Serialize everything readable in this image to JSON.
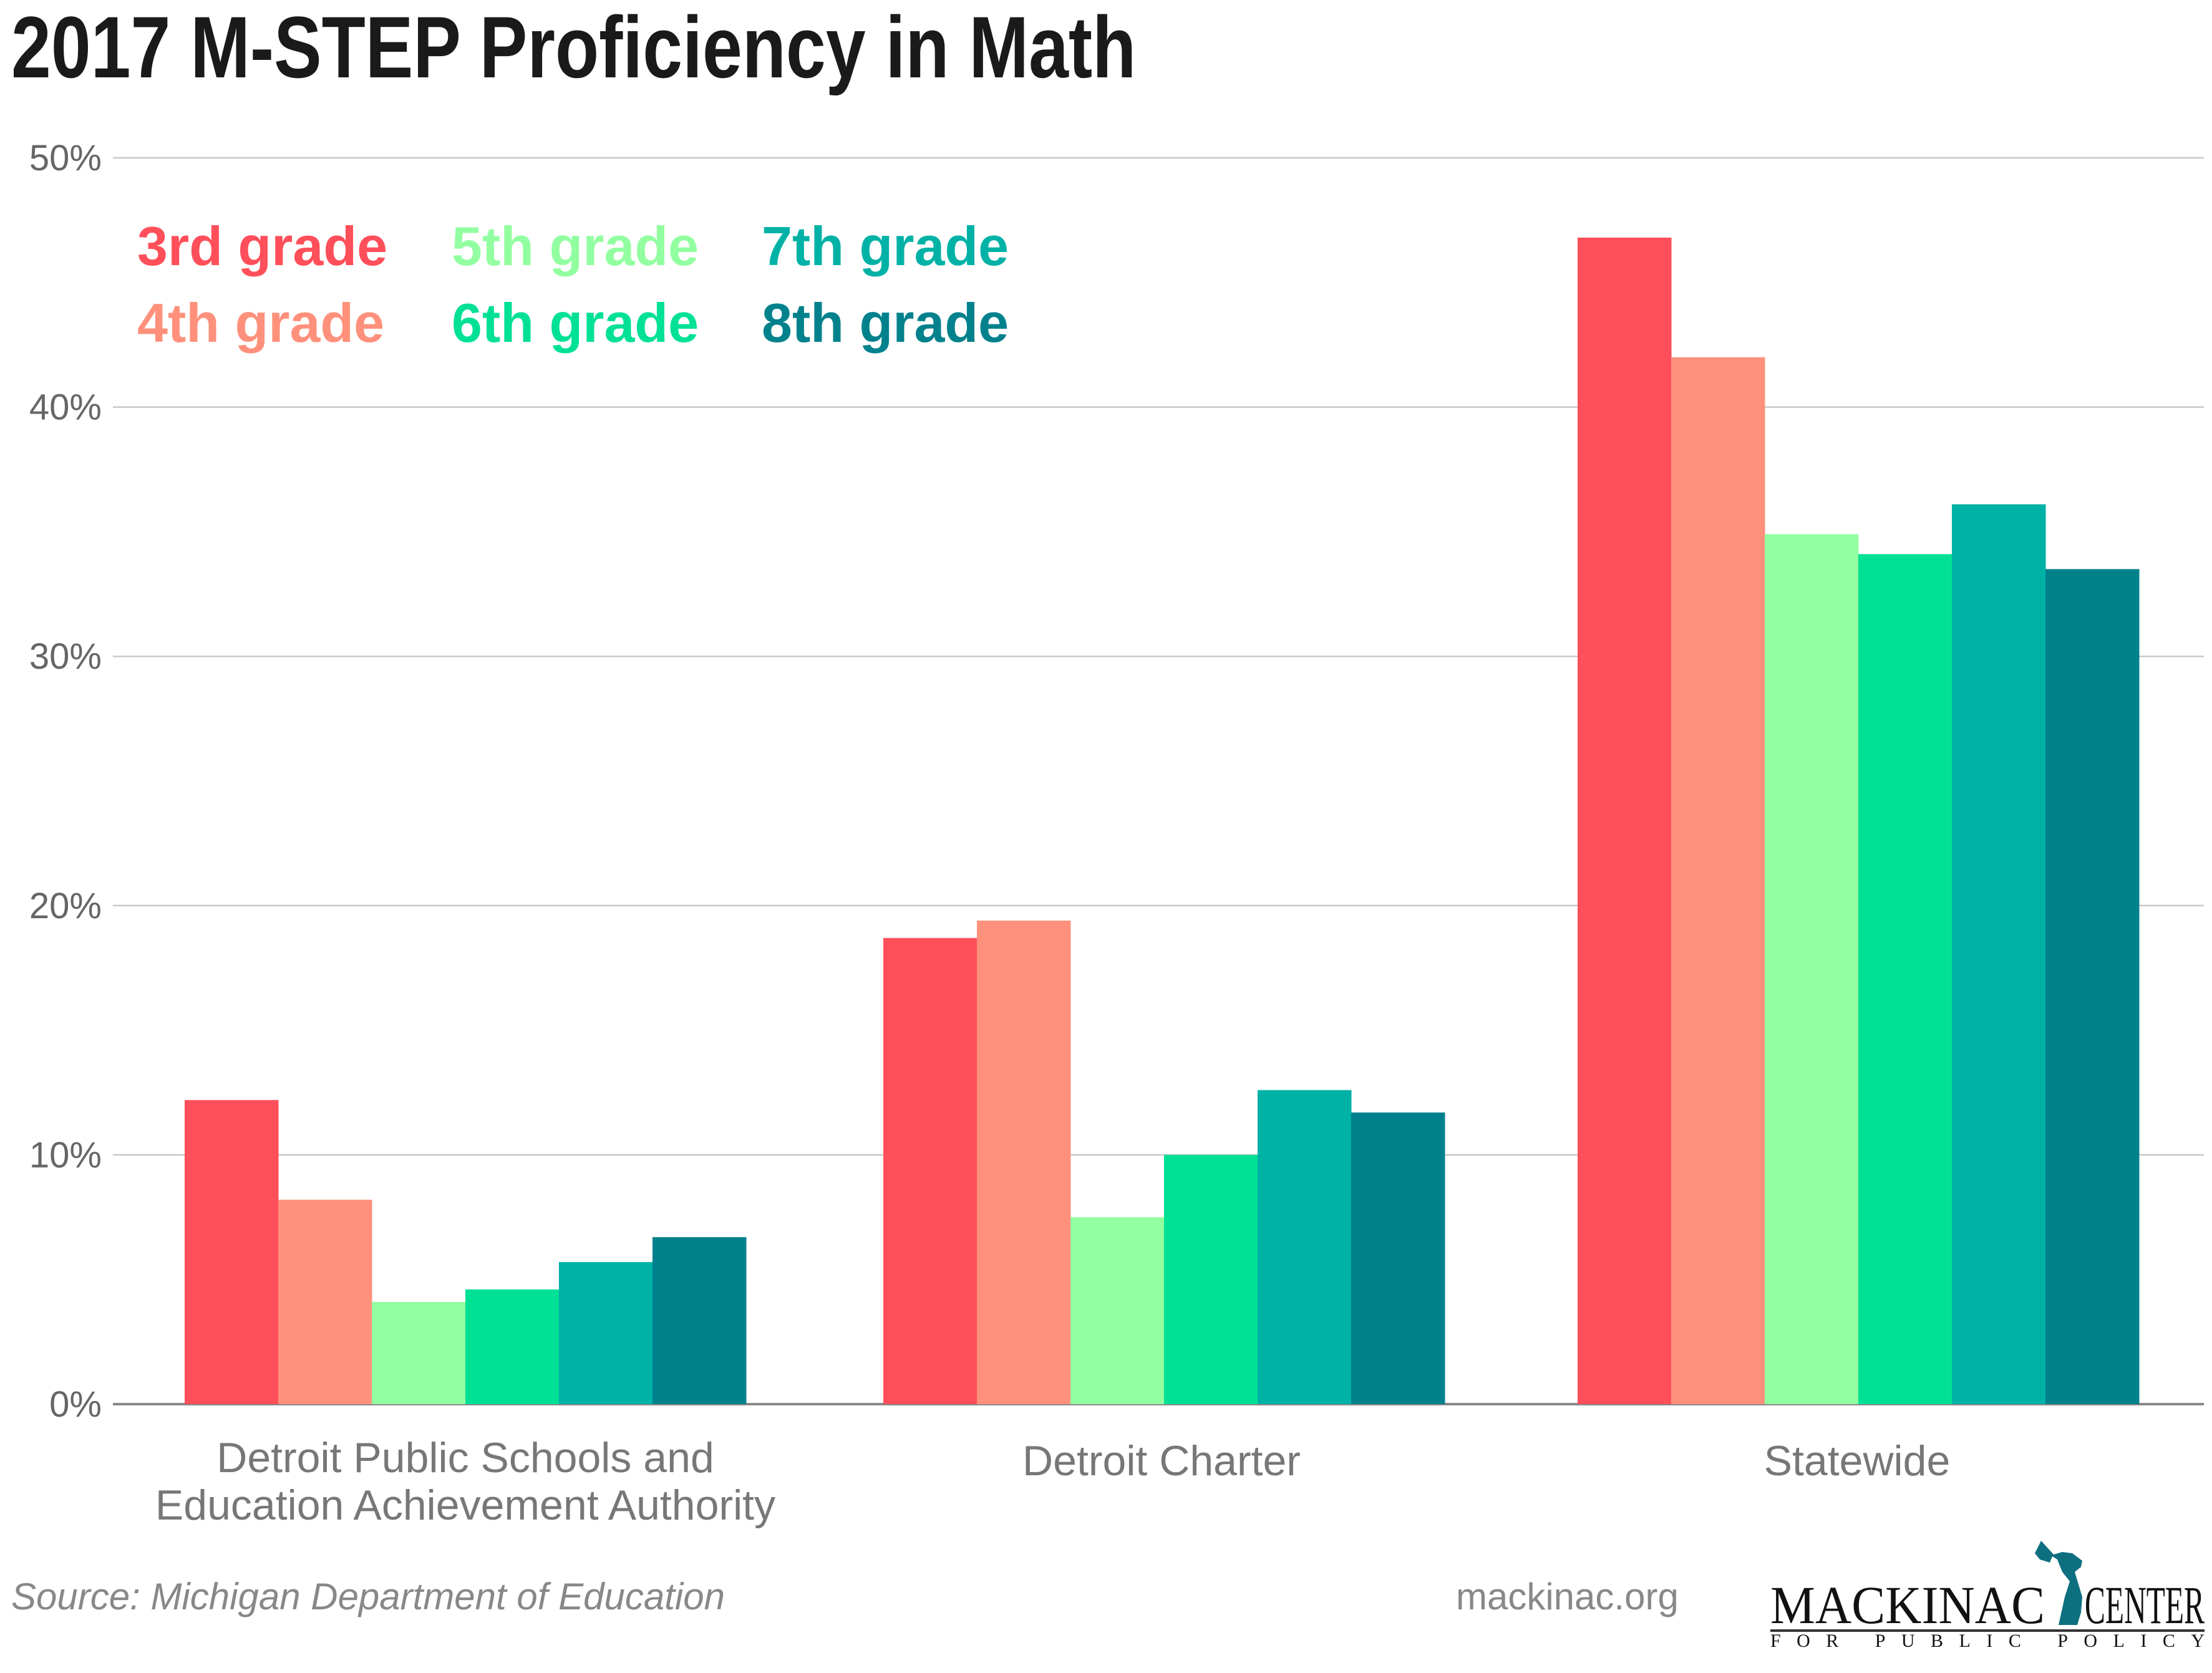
{
  "chart_data": {
    "type": "bar",
    "title": "2017 M-STEP Proficiency in Math",
    "xlabel": "",
    "ylabel": "",
    "ylim": [
      0,
      50
    ],
    "yticks": [
      0,
      10,
      20,
      30,
      40,
      50
    ],
    "ytick_labels": [
      "0%",
      "10%",
      "20%",
      "30%",
      "40%",
      "50%"
    ],
    "grid": true,
    "legend_position": "top-left",
    "categories": [
      [
        "Detroit Public Schools and",
        "Education Achievement Authority"
      ],
      [
        "Detroit Charter"
      ],
      [
        "Statewide"
      ]
    ],
    "series": [
      {
        "name": "3rd grade",
        "color": "#FF4F5A",
        "values": [
          12.2,
          18.7,
          46.8
        ]
      },
      {
        "name": "4th grade",
        "color": "#FF917C",
        "values": [
          8.2,
          19.4,
          42.0
        ]
      },
      {
        "name": "5th grade",
        "color": "#92FFA0",
        "values": [
          4.1,
          7.5,
          34.9
        ]
      },
      {
        "name": "6th grade",
        "color": "#00E195",
        "values": [
          4.6,
          10.0,
          34.1
        ]
      },
      {
        "name": "7th grade",
        "color": "#00B2A6",
        "values": [
          5.7,
          12.6,
          36.1
        ]
      },
      {
        "name": "8th grade",
        "color": "#00818C",
        "values": [
          6.7,
          11.7,
          33.5
        ]
      }
    ]
  },
  "footer": {
    "source": "Source: Michigan Department of Education",
    "website": "mackinac.org",
    "logo_main_left": "MACKINAC",
    "logo_main_right": "CENTER",
    "logo_sub": "FOR PUBLIC POLICY"
  }
}
